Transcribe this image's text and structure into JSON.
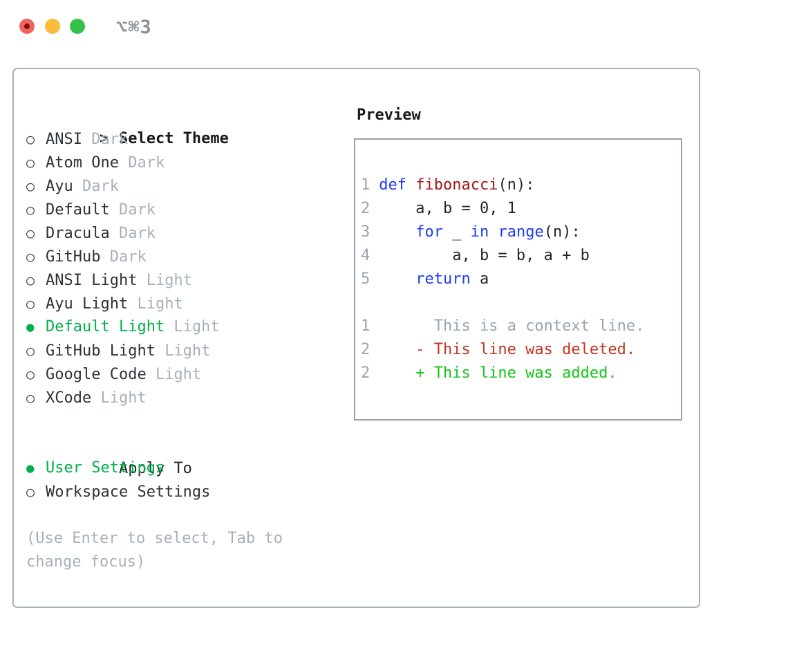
{
  "window": {
    "title": "⌥⌘3"
  },
  "glyphs": {
    "cursor": ">",
    "radio_unselected": "○",
    "radio_selected": "●"
  },
  "theme_list": {
    "heading": "Select Theme",
    "items": [
      {
        "name": "ANSI",
        "variant": "Dark",
        "selected": false
      },
      {
        "name": "Atom One",
        "variant": "Dark",
        "selected": false
      },
      {
        "name": "Ayu",
        "variant": "Dark",
        "selected": false
      },
      {
        "name": "Default",
        "variant": "Dark",
        "selected": false
      },
      {
        "name": "Dracula",
        "variant": "Dark",
        "selected": false
      },
      {
        "name": "GitHub",
        "variant": "Dark",
        "selected": false
      },
      {
        "name": "ANSI Light",
        "variant": "Light",
        "selected": false
      },
      {
        "name": "Ayu Light",
        "variant": "Light",
        "selected": false
      },
      {
        "name": "Default Light",
        "variant": "Light",
        "selected": true
      },
      {
        "name": "GitHub Light",
        "variant": "Light",
        "selected": false
      },
      {
        "name": "Google Code",
        "variant": "Light",
        "selected": false
      },
      {
        "name": "XCode",
        "variant": "Light",
        "selected": false
      }
    ]
  },
  "apply_to": {
    "heading": "Apply To",
    "options": [
      {
        "label": "User Settings",
        "selected": true
      },
      {
        "label": "Workspace Settings",
        "selected": false
      }
    ]
  },
  "hint": "(Use Enter to select, Tab to change focus)",
  "preview": {
    "heading": "Preview",
    "lines": [
      {
        "no": "1",
        "tokens": [
          {
            "text": "def",
            "style": "kw"
          },
          {
            "text": " ",
            "style": "plain"
          },
          {
            "text": "fibonacci",
            "style": "fn"
          },
          {
            "text": "(n):",
            "style": "plain"
          }
        ]
      },
      {
        "no": "2",
        "tokens": [
          {
            "text": "    a, b = 0, 1",
            "style": "plain"
          }
        ]
      },
      {
        "no": "3",
        "tokens": [
          {
            "text": "    ",
            "style": "plain"
          },
          {
            "text": "for",
            "style": "kw"
          },
          {
            "text": " _ ",
            "style": "plain"
          },
          {
            "text": "in",
            "style": "kw"
          },
          {
            "text": " ",
            "style": "plain"
          },
          {
            "text": "range",
            "style": "kw"
          },
          {
            "text": "(n):",
            "style": "plain"
          }
        ]
      },
      {
        "no": "4",
        "tokens": [
          {
            "text": "        a, b = b, a + b",
            "style": "plain"
          }
        ]
      },
      {
        "no": "5",
        "tokens": [
          {
            "text": "    ",
            "style": "plain"
          },
          {
            "text": "return",
            "style": "kw"
          },
          {
            "text": " a",
            "style": "plain"
          }
        ]
      },
      {
        "no": "",
        "tokens": []
      },
      {
        "no": "1",
        "tokens": [
          {
            "text": "      This is a context line.",
            "style": "context"
          }
        ]
      },
      {
        "no": "2",
        "tokens": [
          {
            "text": "    - This line was deleted.",
            "style": "deleted"
          }
        ]
      },
      {
        "no": "2",
        "tokens": [
          {
            "text": "    + This line was added.",
            "style": "added"
          }
        ]
      }
    ]
  },
  "colors": {
    "text": "#2d3339",
    "muted": "#a7b0bb",
    "selection_green": "#00b148",
    "keyword_blue": "#1d3cf3",
    "function_red": "#a31515",
    "diff_deleted": "#c43420",
    "diff_added": "#14c414",
    "line_number": "#9aa4b1",
    "panel_border": "#a9afb9",
    "preview_border": "#99a1ab",
    "traffic_red": "#f0645c",
    "traffic_yellow": "#f7bd3b",
    "traffic_green": "#35c24a",
    "title_gray": "#8b9198"
  }
}
